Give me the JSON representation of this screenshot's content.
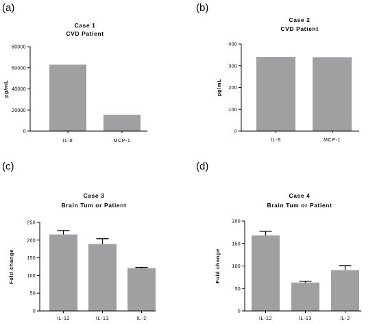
{
  "chart_data": [
    {
      "type": "bar",
      "panel_label": "(a)",
      "title": "Case 1",
      "subtitle": "CVD Patient",
      "ylabel": "pg/mL",
      "xlabel": "",
      "categories": [
        "IL-8",
        "MCP-1"
      ],
      "values": [
        63000,
        15500
      ],
      "ylim": [
        0,
        80000
      ],
      "yticks": [
        0,
        20000,
        40000,
        60000,
        80000
      ],
      "error_bars": false
    },
    {
      "type": "bar",
      "panel_label": "(b)",
      "title": "Case 2",
      "subtitle": "CVD Patient",
      "ylabel": "pg/mL",
      "xlabel": "",
      "categories": [
        "IL-8",
        "MCP-1"
      ],
      "values": [
        340,
        339
      ],
      "ylim": [
        0,
        400
      ],
      "yticks": [
        0,
        100,
        200,
        300,
        400
      ],
      "error_bars": false
    },
    {
      "type": "bar",
      "panel_label": "(c)",
      "title": "Case 3",
      "subtitle": "Brain Tum or Patient",
      "ylabel": "Fold change",
      "xlabel": "",
      "categories": [
        "IL-12",
        "IL-13",
        "IL-2"
      ],
      "values": [
        216,
        189,
        121
      ],
      "errors": [
        11,
        15,
        2
      ],
      "ylim": [
        0,
        250
      ],
      "yticks": [
        0,
        50,
        100,
        150,
        200,
        250
      ],
      "error_bars": true
    },
    {
      "type": "bar",
      "panel_label": "(d)",
      "title": "Case 4",
      "subtitle": "Brain Tum or Patient",
      "ylabel": "Fold change",
      "xlabel": "",
      "categories": [
        "IL-12",
        "IL-13",
        "IL-2"
      ],
      "values": [
        168,
        63,
        91
      ],
      "errors": [
        9,
        3,
        10
      ],
      "ylim": [
        0,
        200
      ],
      "yticks": [
        0,
        50,
        100,
        150,
        200
      ],
      "error_bars": true
    }
  ]
}
